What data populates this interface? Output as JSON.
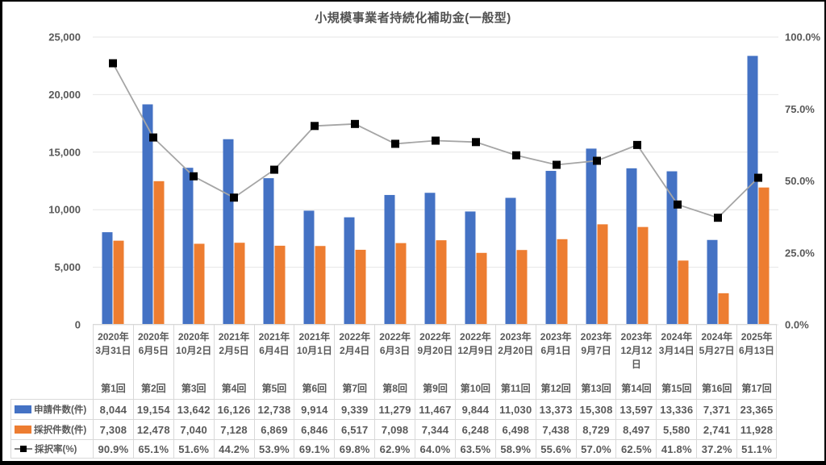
{
  "chart_data": {
    "type": "bar+line-combo",
    "title": "小規模事業者持続化補助金(一般型)",
    "grid": true,
    "legend_position": "data-table-left",
    "categories": [
      {
        "date_lines": [
          "2020年",
          "3月31日"
        ],
        "round": "第1回"
      },
      {
        "date_lines": [
          "2020年",
          "6月5日"
        ],
        "round": "第2回"
      },
      {
        "date_lines": [
          "2020年",
          "10月2日"
        ],
        "round": "第3回"
      },
      {
        "date_lines": [
          "2021年",
          "2月5日"
        ],
        "round": "第4回"
      },
      {
        "date_lines": [
          "2021年",
          "6月4日"
        ],
        "round": "第5回"
      },
      {
        "date_lines": [
          "2021年",
          "10月1日"
        ],
        "round": "第6回"
      },
      {
        "date_lines": [
          "2022年",
          "2月4日"
        ],
        "round": "第7回"
      },
      {
        "date_lines": [
          "2022年",
          "6月3日"
        ],
        "round": "第8回"
      },
      {
        "date_lines": [
          "2022年",
          "9月20日"
        ],
        "round": "第9回"
      },
      {
        "date_lines": [
          "2022年",
          "12月9日"
        ],
        "round": "第10回"
      },
      {
        "date_lines": [
          "2023年",
          "2月20日"
        ],
        "round": "第11回"
      },
      {
        "date_lines": [
          "2023年",
          "6月1日"
        ],
        "round": "第12回"
      },
      {
        "date_lines": [
          "2023年",
          "9月7日"
        ],
        "round": "第13回"
      },
      {
        "date_lines": [
          "2023年",
          "12月12",
          "日"
        ],
        "round": "第14回"
      },
      {
        "date_lines": [
          "2024年",
          "3月14日"
        ],
        "round": "第15回"
      },
      {
        "date_lines": [
          "2024年",
          "5月27日"
        ],
        "round": "第16回"
      },
      {
        "date_lines": [
          "2025年",
          "6月13日"
        ],
        "round": "第17回"
      }
    ],
    "series": [
      {
        "name": "申請件数(件)",
        "type": "bar",
        "color": "#4472C4",
        "values": [
          8044,
          19154,
          13642,
          16126,
          12738,
          9914,
          9339,
          11279,
          11467,
          9844,
          11030,
          13373,
          15308,
          13597,
          13336,
          7371,
          23365
        ]
      },
      {
        "name": "採択件数(件)",
        "type": "bar",
        "color": "#ED7D31",
        "values": [
          7308,
          12478,
          7040,
          7128,
          6869,
          6846,
          6517,
          7098,
          7344,
          6248,
          6498,
          7438,
          8729,
          8497,
          5580,
          2741,
          11928
        ]
      },
      {
        "name": "採択率(%)",
        "type": "line",
        "color": "#A5A5A5",
        "marker_color": "#000000",
        "values": [
          90.9,
          65.1,
          51.6,
          44.2,
          53.9,
          69.1,
          69.8,
          62.9,
          64.0,
          63.5,
          58.9,
          55.6,
          57.0,
          62.5,
          41.8,
          37.2,
          51.1
        ]
      }
    ],
    "left_axis": {
      "min": 0,
      "max": 25000,
      "step": 5000,
      "tick_labels": [
        "0",
        "5,000",
        "10,000",
        "15,000",
        "20,000",
        "25,000"
      ]
    },
    "right_axis": {
      "min": 0,
      "max": 100,
      "step": 25,
      "tick_labels": [
        "0.0%",
        "25.0%",
        "50.0%",
        "75.0%",
        "100.0%"
      ]
    },
    "colors": {
      "grid": "#E6E6E6",
      "axis_text": "#595959",
      "table_border": "#D9D9D9",
      "title_text": "#515151"
    }
  }
}
